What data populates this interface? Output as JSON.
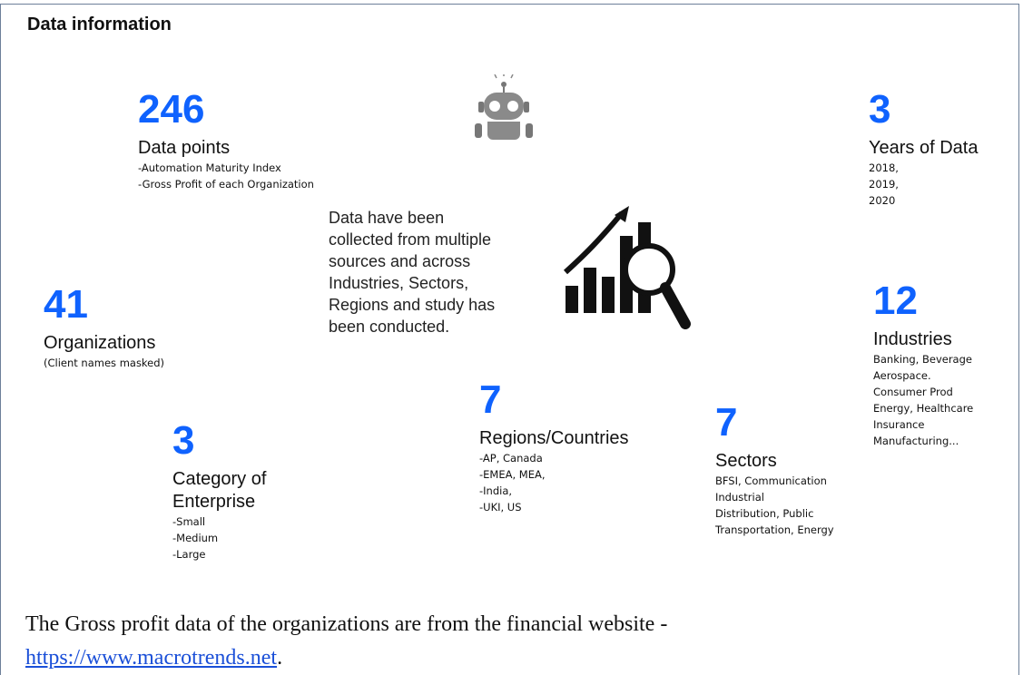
{
  "title": "Data information",
  "stats": [
    {
      "number": "246",
      "label": [
        "Data points"
      ],
      "details": [
        "-Automation Maturity Index",
        "-Gross Profit of each Organization"
      ]
    },
    {
      "number": "3",
      "label": [
        "Years of Data"
      ],
      "details": [
        "2018,",
        "2019,",
        "2020"
      ]
    },
    {
      "number": "41",
      "label": [
        "Organizations"
      ],
      "details": [
        "(Client names masked)"
      ]
    },
    {
      "number": "12",
      "label": [
        "Industries"
      ],
      "details": [
        "Banking, Beverage",
        "Aerospace.",
        "Consumer Prod",
        "Energy, Healthcare",
        "Insurance",
        "Manufacturing..."
      ]
    },
    {
      "number": "3",
      "label": [
        "Category of",
        "Enterprise"
      ],
      "details": [
        "-Small",
        "-Medium",
        "-Large"
      ]
    },
    {
      "number": "7",
      "label": [
        "Regions/Countries"
      ],
      "details": [
        "-AP, Canada",
        "-EMEA, MEA,",
        "-India,",
        "-UKI, US"
      ]
    },
    {
      "number": "7",
      "label": [
        "Sectors"
      ],
      "details": [
        "BFSI, Communication",
        "Industrial",
        "Distribution, Public",
        "Transportation, Energy"
      ]
    }
  ],
  "summary": [
    "Data have been",
    "collected from multiple",
    "sources and across",
    "Industries, Sectors,",
    "Regions and study has",
    "been conducted."
  ],
  "footer": {
    "text": "The Gross profit data of the organizations are from the financial website -",
    "link": "https://www.macrotrends.net",
    "end": "."
  }
}
